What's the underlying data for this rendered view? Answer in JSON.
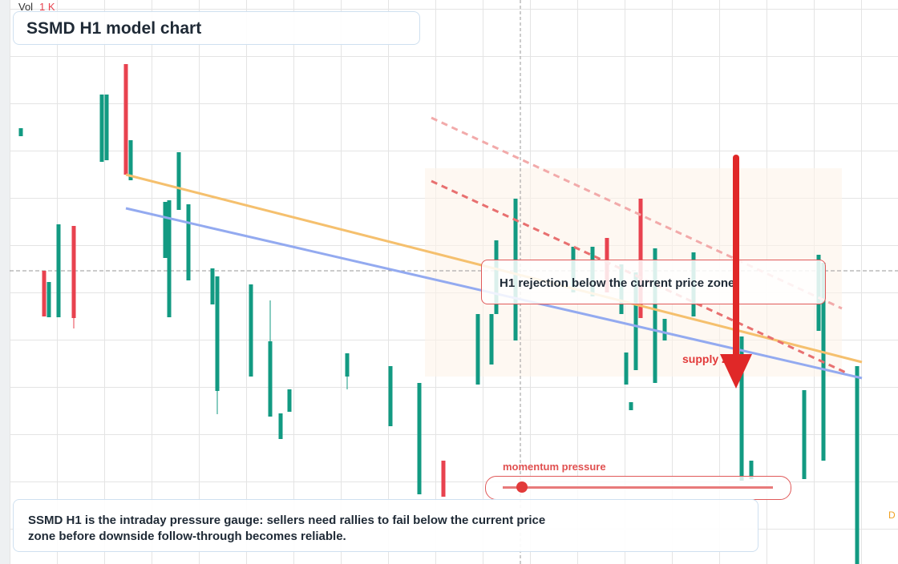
{
  "chart_data": {
    "type": "candlestick",
    "title": "SSMD H1 model chart",
    "volume_label": "Vol",
    "volume_scale": "1 K",
    "annotation": "H1 rejection below the current price zone",
    "zone_label": "supply zone",
    "gauge_label": "momentum pressure",
    "summary": [
      "SSMD H1 is the intraday pressure gauge: sellers need rallies to fail below the current price",
      "zone before downside follow-through becomes reliable."
    ],
    "edge_label": "D",
    "up_color": "#129a82",
    "down_color": "#e8424f",
    "xlim": [
      0,
      112
    ],
    "ylim": [
      0,
      70.4
    ],
    "x": [
      2.6,
      5.5,
      6.1,
      7.3,
      9.2,
      12.7,
      13.3,
      15.7,
      16.3,
      20.6,
      21.1,
      22.3,
      23.5,
      26.5,
      27.1,
      31.3,
      33.7,
      35.0,
      36.1,
      43.3,
      48.7,
      52.3,
      55.3,
      59.6,
      61.3,
      61.9,
      64.3,
      71.5,
      73.9,
      75.7,
      77.5,
      78.1,
      78.7,
      79.3,
      79.9,
      81.7,
      82.9,
      86.5,
      92.5,
      93.7,
      100.3,
      102.1,
      102.7,
      106.9
    ],
    "open": [
      53.4,
      36.6,
      30.8,
      30.8,
      42.2,
      50.2,
      50.4,
      62.4,
      47.9,
      38.2,
      30.8,
      44.2,
      35.4,
      32.4,
      21.6,
      23.4,
      18.4,
      15.6,
      19.0,
      23.4,
      17.2,
      8.7,
      12.9,
      22.4,
      24.9,
      31.2,
      27.9,
      33.9,
      33.4,
      40.7,
      31.2,
      22.4,
      19.2,
      24.2,
      45.6,
      22.6,
      27.9,
      30.9,
      10.4,
      10.6,
      10.6,
      29.1,
      12.9,
      0
    ],
    "close": [
      54.4,
      30.9,
      35.2,
      42.4,
      30.7,
      58.6,
      58.6,
      48.6,
      52.9,
      45.2,
      45.4,
      51.4,
      44.9,
      36.9,
      35.9,
      34.9,
      27.8,
      18.8,
      21.8,
      26.3,
      24.7,
      22.6,
      8.4,
      31.2,
      31.2,
      40.4,
      45.6,
      39.6,
      39.6,
      33.9,
      37.4,
      26.4,
      20.2,
      36.4,
      30.7,
      39.4,
      30.6,
      38.9,
      28.4,
      12.9,
      21.7,
      38.6,
      37.6,
      24.7
    ],
    "high": [
      54.4,
      36.6,
      35.2,
      42.4,
      42.2,
      58.6,
      58.6,
      62.4,
      52.9,
      45.2,
      45.4,
      51.4,
      44.9,
      36.9,
      35.9,
      34.9,
      32.9,
      18.8,
      21.8,
      26.3,
      24.7,
      22.6,
      12.9,
      31.2,
      31.2,
      40.4,
      45.6,
      39.6,
      39.6,
      40.7,
      37.4,
      26.4,
      20.2,
      36.4,
      45.6,
      39.4,
      30.6,
      38.9,
      28.4,
      12.9,
      21.7,
      38.6,
      37.6,
      24.7
    ],
    "low": [
      53.4,
      30.9,
      30.8,
      30.8,
      29.4,
      50.2,
      50.4,
      48.6,
      47.9,
      38.2,
      30.8,
      44.2,
      35.4,
      32.4,
      18.7,
      23.4,
      18.4,
      15.6,
      19.0,
      21.8,
      17.2,
      8.7,
      8.4,
      22.4,
      24.9,
      31.2,
      27.9,
      33.9,
      33.4,
      33.9,
      31.2,
      22.4,
      19.2,
      24.2,
      30.7,
      22.6,
      27.9,
      30.9,
      10.4,
      10.6,
      10.6,
      29.1,
      12.9,
      0
    ],
    "current_price": 36.6,
    "crosshair_x": 64.9,
    "trendlines": [
      {
        "color": "#f5c06e",
        "x": [
          15.7,
          107.5
        ],
        "y": [
          48.6,
          25.2
        ]
      },
      {
        "color": "#93aaf0",
        "x": [
          15.7,
          107.5
        ],
        "y": [
          44.4,
          23.2
        ]
      },
      {
        "color": "#e87070",
        "dashed": true,
        "x": [
          53.8,
          105.5
        ],
        "y": [
          47.8,
          23.9
        ]
      },
      {
        "color": "#f2aaaa",
        "dashed": true,
        "x": [
          53.8,
          105.0
        ],
        "y": [
          55.7,
          31.9
        ]
      }
    ]
  }
}
